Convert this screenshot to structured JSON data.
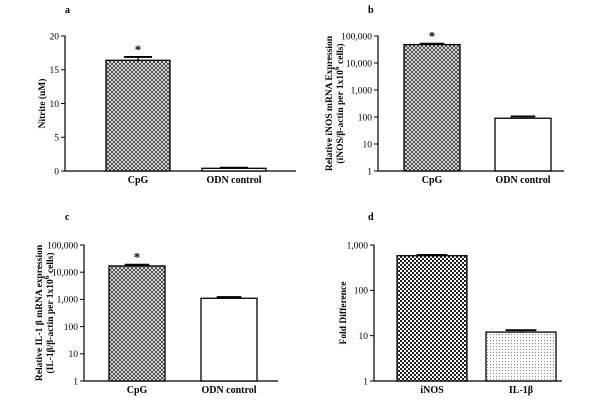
{
  "chart_data": [
    {
      "panel": "a",
      "type": "bar",
      "categories": [
        "CpG",
        "ODN control"
      ],
      "values": [
        16.4,
        0.4
      ],
      "errors": [
        0.5,
        0.1
      ],
      "significance": [
        "*",
        ""
      ],
      "ylabel": "Nitrite (uM)",
      "ylabel_lines": [
        "Nitrite (uM)"
      ],
      "yscale": "linear",
      "ylim": [
        0,
        20
      ],
      "yticks": [
        "0",
        "5",
        "10",
        "15",
        "20"
      ],
      "patterns": [
        "crosshatch",
        "none"
      ]
    },
    {
      "panel": "b",
      "type": "bar",
      "categories": [
        "CpG",
        "ODN control"
      ],
      "values": [
        48000,
        90
      ],
      "errors": [
        4000,
        15
      ],
      "significance": [
        "*",
        ""
      ],
      "ylabel": "Relative iNOS mRNA Expression (iNOS/β-actin per 1x10 6 cells)",
      "ylabel_lines": [
        "Relative iNOS mRNA Expression",
        "(iNOS/β-actin per 1x10",
        "6",
        " cells)"
      ],
      "yscale": "log",
      "ylim": [
        1,
        100000
      ],
      "yticks": [
        "1",
        "10",
        "100",
        "1,000",
        "10,000",
        "100,000"
      ],
      "patterns": [
        "crosshatch",
        "none"
      ]
    },
    {
      "panel": "c",
      "type": "bar",
      "categories": [
        "CpG",
        "ODN control"
      ],
      "values": [
        17000,
        1100
      ],
      "errors": [
        2000,
        120
      ],
      "significance": [
        "*",
        ""
      ],
      "ylabel": "Relative IL-1 β mRNA expression (IL-1β/β-actin per 1x10 6 cells)",
      "ylabel_lines": [
        "Relative IL-1 β mRNA expression",
        "(IL-1β/β-actin per 1x10",
        "6",
        " cells)"
      ],
      "yscale": "log",
      "ylim": [
        1,
        100000
      ],
      "yticks": [
        "1",
        "10",
        "100",
        "1,000",
        "10,000",
        "100,000"
      ],
      "patterns": [
        "crosshatch",
        "none"
      ]
    },
    {
      "panel": "d",
      "type": "bar",
      "categories": [
        "iNOS",
        "IL-1β"
      ],
      "values": [
        580,
        12
      ],
      "errors": [
        25,
        1.2
      ],
      "significance": [
        "",
        ""
      ],
      "ylabel": "Fold Difference",
      "ylabel_lines": [
        "Fold Difference"
      ],
      "yscale": "log",
      "ylim": [
        1,
        1000
      ],
      "yticks": [
        "1",
        "10",
        "100",
        "1,000"
      ],
      "patterns": [
        "checker",
        "dots"
      ]
    }
  ]
}
